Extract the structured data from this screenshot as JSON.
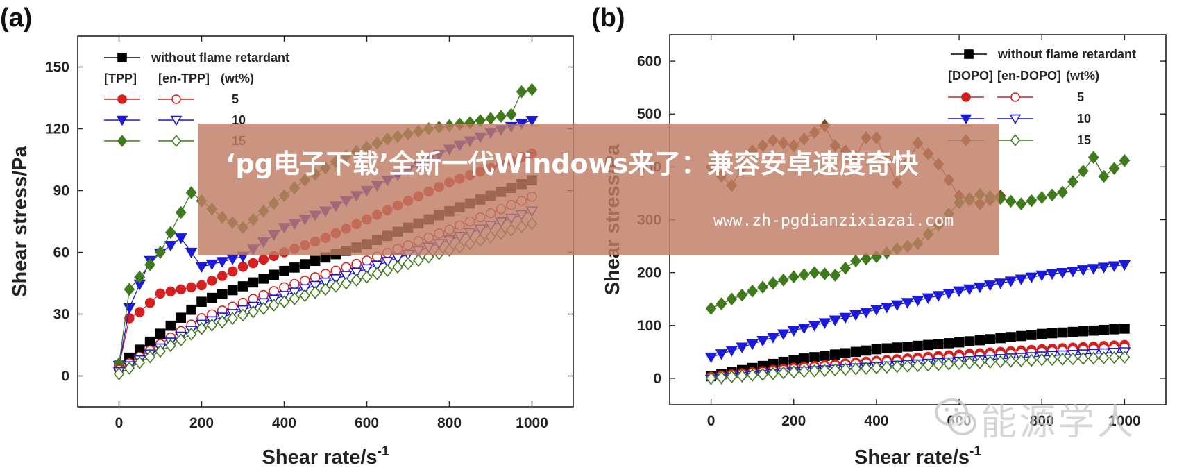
{
  "panels": [
    {
      "id": "a",
      "panel_label": "(a)",
      "chart_data": {
        "type": "scatter",
        "xlabel": "Shear rate/s",
        "xlabel_sup": "-1",
        "ylabel": "Shear stress/Pa",
        "xlim": [
          -100,
          1100
        ],
        "ylim": [
          -15,
          165
        ],
        "xticks": [
          0,
          200,
          400,
          600,
          800,
          1000
        ],
        "yticks": [
          0,
          30,
          60,
          90,
          120,
          150
        ],
        "legend": {
          "placement": "top-left",
          "base_label": "without flame retardant",
          "head_labels": [
            "[TPP]",
            "[en-TPP]",
            "(wt%)"
          ],
          "rows": [
            "5",
            "10",
            "15"
          ]
        },
        "series": [
          {
            "name": "without flame retardant",
            "color": "#000000",
            "marker": "square",
            "fill": true,
            "x": [
              0,
              200,
              400,
              600,
              800,
              1000
            ],
            "y": [
              5,
              36,
              51,
              64,
              80,
              95
            ]
          },
          {
            "name": "TPP 5",
            "color": "#d42020",
            "marker": "circle",
            "fill": true,
            "x": [
              0,
              25,
              50,
              100,
              200,
              300,
              400,
              500,
              600,
              700,
              800,
              900,
              1000
            ],
            "y": [
              5,
              28,
              31,
              40,
              44,
              53,
              60,
              67,
              76,
              85,
              94,
              101,
              108
            ]
          },
          {
            "name": "TPP 10",
            "color": "#1a1ad8",
            "marker": "triangle-down",
            "fill": true,
            "x": [
              0,
              25,
              75,
              150,
              200,
              300,
              400,
              500,
              600,
              700,
              800,
              900,
              1000
            ],
            "y": [
              5,
              33,
              56,
              67,
              53,
              58,
              72,
              80,
              90,
              100,
              110,
              118,
              124
            ]
          },
          {
            "name": "TPP 15",
            "color": "#3f7a1c",
            "marker": "diamond",
            "fill": true,
            "x": [
              0,
              25,
              100,
              175,
              250,
              300,
              350,
              450,
              550,
              650,
              750,
              850,
              950,
              975,
              1000
            ],
            "y": [
              6,
              42,
              60,
              89,
              77,
              72,
              80,
              95,
              107,
              115,
              120,
              123,
              127,
              138,
              139
            ]
          },
          {
            "name": "en-TPP 5",
            "color": "#d42020",
            "marker": "circle",
            "fill": false,
            "x": [
              0,
              200,
              400,
              600,
              800,
              1000
            ],
            "y": [
              3,
              28,
              43,
              56,
              71,
              87
            ]
          },
          {
            "name": "en-TPP 10",
            "color": "#1a1ad8",
            "marker": "triangle-down",
            "fill": false,
            "x": [
              0,
              200,
              400,
              600,
              800,
              1000
            ],
            "y": [
              2,
              25,
              39,
              52,
              66,
              80
            ]
          },
          {
            "name": "en-TPP 15",
            "color": "#3f7a1c",
            "marker": "diamond",
            "fill": false,
            "x": [
              0,
              200,
              400,
              600,
              800,
              1000
            ],
            "y": [
              1,
              23,
              36,
              48,
              61,
              74
            ]
          }
        ]
      }
    },
    {
      "id": "b",
      "panel_label": "(b)",
      "chart_data": {
        "type": "scatter",
        "xlabel": "Shear rate/s",
        "xlabel_sup": "-1",
        "ylabel": "Shear stress/Pa",
        "xlim": [
          -100,
          1100
        ],
        "ylim": [
          -50,
          650
        ],
        "xticks": [
          0,
          200,
          400,
          600,
          800,
          1000
        ],
        "yticks": [
          0,
          100,
          200,
          300,
          400,
          500,
          600
        ],
        "legend": {
          "placement": "top-right",
          "base_label": "without flame retardant",
          "head_labels": [
            "[DOPO]",
            "[en-DOPO]",
            "(wt%)"
          ],
          "rows": [
            "5",
            "10",
            "15"
          ]
        },
        "series": [
          {
            "name": "without flame retardant",
            "color": "#000000",
            "marker": "square",
            "fill": true,
            "x": [
              0,
              200,
              400,
              600,
              800,
              1000
            ],
            "y": [
              4,
              35,
              55,
              68,
              84,
              94
            ]
          },
          {
            "name": "DOPO 5",
            "color": "#d42020",
            "marker": "circle",
            "fill": true,
            "x": [
              0,
              200,
              400,
              600,
              800,
              1000
            ],
            "y": [
              3,
              20,
              33,
              45,
              55,
              63
            ]
          },
          {
            "name": "DOPO 10",
            "color": "#1a1ad8",
            "marker": "triangle-down",
            "fill": true,
            "x": [
              0,
              200,
              400,
              600,
              800,
              1000
            ],
            "y": [
              40,
              90,
              130,
              165,
              195,
              215
            ]
          },
          {
            "name": "DOPO 15",
            "color": "#7a4a1a",
            "marker": "diamond",
            "fill": true,
            "x": [
              0,
              50,
              100,
              150,
              200,
              250,
              275,
              300,
              350,
              375,
              400,
              450,
              500,
              550,
              600,
              650,
              700
            ],
            "y": [
              400,
              365,
              430,
              450,
              440,
              465,
              478,
              440,
              420,
              455,
              455,
              370,
              445,
              405,
              345,
              330,
              345
            ]
          },
          {
            "name": "en-DOPO 5",
            "color": "#d42020",
            "marker": "circle",
            "fill": false,
            "x": [
              0,
              200,
              400,
              600,
              800,
              1000
            ],
            "y": [
              2,
              18,
              30,
              40,
              50,
              58
            ]
          },
          {
            "name": "en-DOPO 10",
            "color": "#1a1ad8",
            "marker": "triangle-down",
            "fill": false,
            "x": [
              0,
              200,
              400,
              600,
              800,
              1000
            ],
            "y": [
              -2,
              12,
              22,
              32,
              42,
              50
            ]
          },
          {
            "name": "en-DOPO 15",
            "color": "#3f7a1c",
            "marker": "diamond",
            "fill": false,
            "x": [
              0,
              200,
              400,
              600,
              800,
              1000
            ],
            "y": [
              0,
              12,
              20,
              28,
              35,
              40
            ]
          },
          {
            "name": "DOPO 15 (green)",
            "color": "#3f7a1c",
            "marker": "diamond",
            "fill": true,
            "x": [
              0,
              50,
              100,
              150,
              200,
              250,
              300,
              350,
              400,
              450,
              500,
              550,
              600,
              650,
              700,
              750,
              800,
              850,
              900,
              925,
              950,
              1000
            ],
            "y": [
              132,
              150,
              165,
              180,
              192,
              200,
              195,
              222,
              230,
              245,
              255,
              290,
              332,
              348,
              340,
              330,
              342,
              352,
              392,
              418,
              382,
              412
            ]
          }
        ]
      }
    }
  ],
  "overlay": {
    "title": "‘pg电子下载’全新一代Windows来了：兼容安卓速度奇快",
    "url": "www.zh-pgdianzixiazai.com",
    "watermark": "能源学人",
    "overlay_color": "#be7d64"
  }
}
